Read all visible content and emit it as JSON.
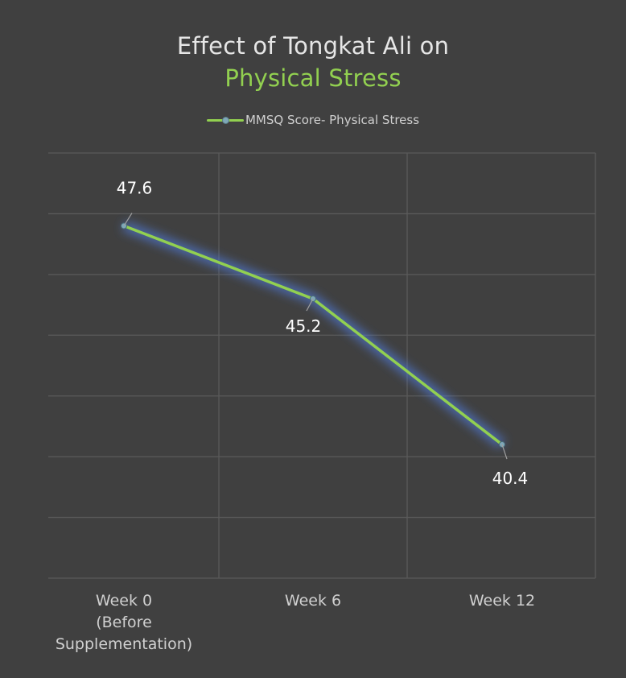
{
  "chart_data": {
    "type": "line",
    "title_line1": "Effect of Tongkat Ali on",
    "title_line2": "Physical Stress",
    "categories": [
      "Week 0\n(Before\nSupplementation)",
      "Week 6",
      "Week 12"
    ],
    "series": [
      {
        "name": "MMSQ Score-  Physical Stress",
        "values": [
          47.6,
          45.2,
          40.4
        ]
      }
    ],
    "data_labels": [
      "47.6",
      "45.2",
      "40.4"
    ],
    "xlabel": "",
    "ylabel": "",
    "ylim": [
      36,
      50
    ],
    "grid": true,
    "legend_position": "top",
    "colors": {
      "line": "#92d050",
      "title_accent": "#92d050",
      "marker": "#7fa8b8",
      "glow": "#4f79d8"
    }
  }
}
